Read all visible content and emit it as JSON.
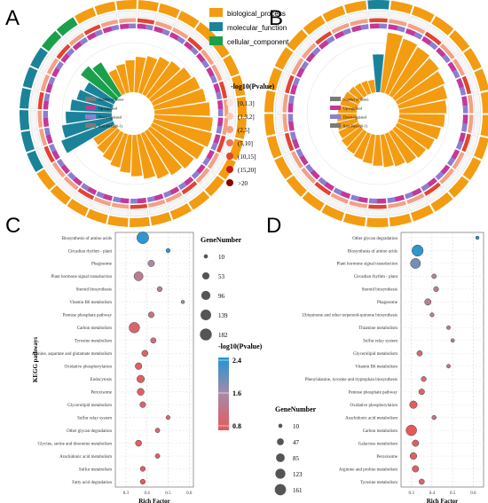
{
  "panels": {
    "a": "A",
    "b": "B",
    "c": "C",
    "d": "D"
  },
  "top_legend": {
    "categories": [
      {
        "label": "biological_process",
        "color": "#f39c12"
      },
      {
        "label": "molecular_function",
        "color": "#1b8399"
      },
      {
        "label": "cellular_component",
        "color": "#1a9f4a"
      }
    ],
    "pvalue_title": "-log10(Pvalue)",
    "pvalue_bins": [
      {
        "label": "[0,1.3]",
        "color": "#fbe3d8"
      },
      {
        "label": "(1.3,2]",
        "color": "#f8c8b4"
      },
      {
        "label": "(2,5]",
        "color": "#f2a184"
      },
      {
        "label": "(5,10]",
        "color": "#ea7358"
      },
      {
        "label": "(10,15]",
        "color": "#e0452f"
      },
      {
        "label": "(15,20]",
        "color": "#c41a17"
      },
      {
        "label": ">20",
        "color": "#8b0000"
      }
    ]
  },
  "circle_legend": {
    "a": [
      "Number of Genes",
      "Up-regulated",
      "Down-regulated",
      "Rich Factor(0-1)"
    ],
    "b": [
      "Number of Genes",
      "Up-regulated",
      "Down-regulated",
      "Rich Factor(0-1)"
    ]
  },
  "colors": {
    "up": "#c2399a",
    "down": "#8b7fd1",
    "gray": "#777777",
    "bp": "#f39c12",
    "mf": "#1b8399",
    "cc": "#1a9f4a"
  },
  "chart_data": [
    {
      "type": "circular-bar",
      "panel": "A",
      "sectors": [
        {
          "category": "biological_process",
          "bars": [
            0.42,
            0.47,
            0.52,
            0.58,
            0.62,
            0.68,
            0.72,
            0.78,
            0.83,
            0.87,
            0.92,
            0.97,
            1.0,
            0.95,
            0.9,
            0.85,
            0.8,
            0.74,
            0.68,
            0.62,
            0.56,
            0.5,
            0.45,
            0.41
          ]
        },
        {
          "category": "molecular_function",
          "bars": [
            0.92,
            0.84,
            0.76,
            0.68,
            0.6,
            0.53
          ]
        },
        {
          "category": "cellular_component",
          "bars": [
            0.72,
            0.64
          ]
        }
      ]
    },
    {
      "type": "circular-bar",
      "panel": "B",
      "sectors": [
        {
          "category": "molecular_function",
          "bars": [
            0.62
          ]
        },
        {
          "category": "biological_process",
          "bars": [
            1.0,
            0.96,
            0.93,
            0.9,
            0.86,
            0.82,
            0.78,
            0.75,
            0.71,
            0.67,
            0.63,
            0.6,
            0.56,
            0.53,
            0.5,
            0.47,
            0.44,
            0.41,
            0.38,
            0.35,
            0.33,
            0.31,
            0.29,
            0.27,
            0.25,
            0.23,
            0.21,
            0.2,
            0.19
          ]
        }
      ]
    },
    {
      "type": "scatter",
      "panel": "C",
      "ylabel": "KEGG pathways",
      "xlabel": "Rich Factor",
      "xlim": [
        0.25,
        0.62
      ],
      "xticks": [
        0.3,
        0.4,
        0.5,
        0.6
      ],
      "size_title": "GeneNumber",
      "size_legend": [
        10,
        53,
        96,
        139,
        182
      ],
      "color_title": "-log10(Pvalue)",
      "color_ticks": [
        2.4,
        1.6,
        0.8
      ],
      "color_range": [
        0.8,
        2.4
      ],
      "pathways": [
        "Biosynthesis of amino acids",
        "Circadian rhythm - plant",
        "Phagosome",
        "Plant hormone signal transduction",
        "Steroid biosynthesis",
        "Vitamin B6 metabolism",
        "Pentose phosphate pathway",
        "Carbon metabolism",
        "Tyrosine metabolism",
        "Alanine, aspartate and glutamate metabolism",
        "Oxidative phosphorylation",
        "Endocytosis",
        "Peroxisome",
        "Glycerolipid metabolism",
        "Sulfur relay system",
        "Other glycan degradation",
        "Glycine, serine and threonine metabolism",
        "Arachidonic acid metabolism",
        "Sulfur metabolism",
        "Fatty acid degradation"
      ],
      "rich_factor": [
        0.38,
        0.5,
        0.42,
        0.36,
        0.46,
        0.57,
        0.42,
        0.34,
        0.43,
        0.39,
        0.36,
        0.37,
        0.37,
        0.38,
        0.5,
        0.45,
        0.36,
        0.45,
        0.38,
        0.38
      ],
      "gene_number": [
        182,
        10,
        40,
        96,
        20,
        5,
        30,
        139,
        25,
        35,
        45,
        60,
        50,
        30,
        10,
        15,
        35,
        15,
        20,
        20
      ],
      "neg_log10_p": [
        2.3,
        2.4,
        1.6,
        1.4,
        1.5,
        1.6,
        1.2,
        1.0,
        1.1,
        1.0,
        0.9,
        0.9,
        0.9,
        1.0,
        1.0,
        1.1,
        0.9,
        0.9,
        0.9,
        0.9
      ]
    },
    {
      "type": "scatter",
      "panel": "D",
      "xlabel": "Rich Factor",
      "xlim": [
        0.25,
        0.65
      ],
      "xticks": [
        0.3,
        0.4,
        0.5,
        0.6
      ],
      "size_title": "GeneNumber",
      "size_legend": [
        10,
        47,
        85,
        123,
        161
      ],
      "pathways": [
        "Other glycan degradation",
        "Biosynthesis of amino acids",
        "Plant hormone signal transduction",
        "Circadian rhythm - plant",
        "Steroid biosynthesis",
        "Phagosome",
        "Ubiquinone and other terpenoid-quinone biosynthesis",
        "Thiamine metabolism",
        "Sulfur relay system",
        "Glycerolipid metabolism",
        "Vitamin B6 metabolism",
        "Phenylalanine, tyrosine and tryptophan biosynthesis",
        "Pentose phosphate pathway",
        "Oxidative phosphorylation",
        "Arachidonic acid metabolism",
        "Carbon metabolism",
        "Galactose metabolism",
        "Peroxisome",
        "Arginine and proline metabolism",
        "Tyrosine metabolism"
      ],
      "rich_factor": [
        0.62,
        0.33,
        0.32,
        0.41,
        0.42,
        0.38,
        0.4,
        0.48,
        0.5,
        0.34,
        0.48,
        0.36,
        0.35,
        0.31,
        0.41,
        0.3,
        0.32,
        0.31,
        0.32,
        0.35
      ],
      "gene_number": [
        5,
        161,
        123,
        15,
        20,
        40,
        10,
        8,
        6,
        25,
        8,
        20,
        30,
        60,
        12,
        140,
        40,
        45,
        40,
        25
      ],
      "neg_log10_p": [
        2.4,
        2.3,
        1.9,
        1.5,
        1.4,
        1.4,
        1.4,
        1.4,
        1.3,
        1.1,
        1.2,
        1.1,
        1.0,
        0.9,
        1.2,
        0.8,
        0.9,
        0.9,
        0.9,
        1.0
      ]
    }
  ]
}
